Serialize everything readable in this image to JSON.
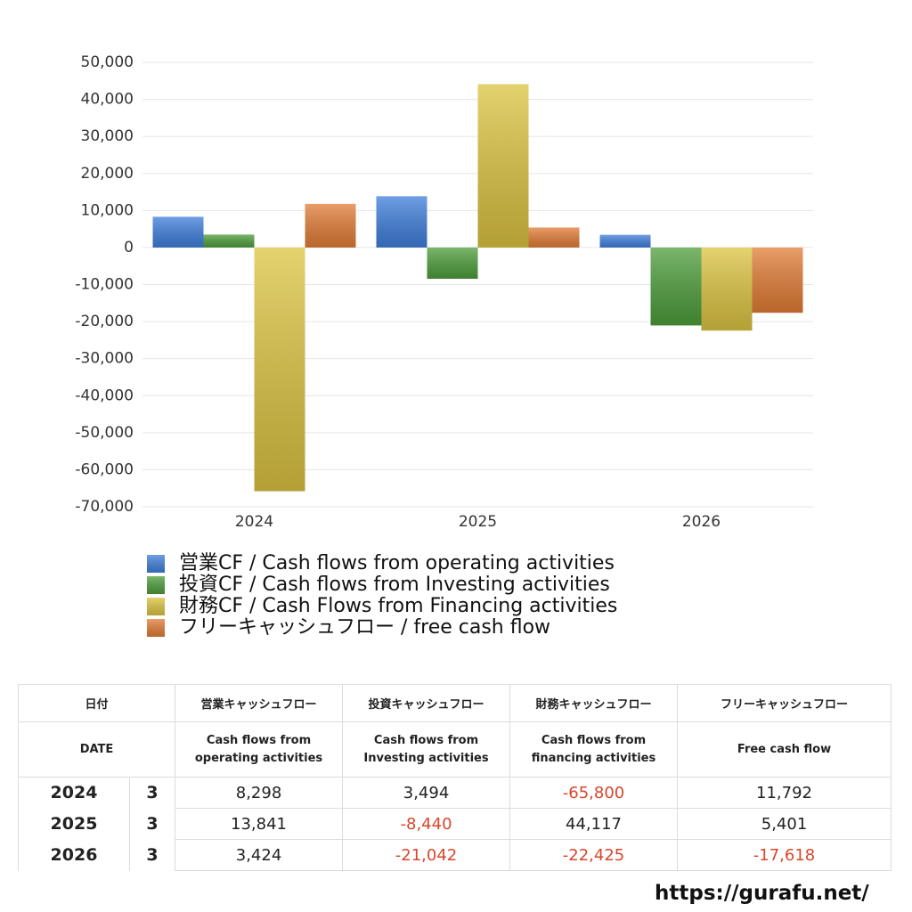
{
  "chart_data": {
    "type": "bar",
    "categories": [
      "2024",
      "2025",
      "2026"
    ],
    "series": [
      {
        "name": "営業CF / Cash flows from operating activities",
        "color": "#3f7fdc",
        "values": [
          8298,
          13841,
          3424
        ]
      },
      {
        "name": "投資CF / Cash flows from Investing activities",
        "color": "#4e9e3c",
        "values": [
          3494,
          -8440,
          -21042
        ]
      },
      {
        "name": "財務CF / Cash Flows from Financing activities",
        "color": "#dcc441",
        "values": [
          -65800,
          44117,
          -22425
        ]
      },
      {
        "name": "フリーキャッシュフロー / free cash flow",
        "color": "#e27d36",
        "values": [
          11792,
          5401,
          -17618
        ]
      }
    ],
    "ylim": [
      -70000,
      50000
    ],
    "yticks": [
      {
        "value": 50000,
        "label": "50,000"
      },
      {
        "value": 40000,
        "label": "40,000"
      },
      {
        "value": 30000,
        "label": "30,000"
      },
      {
        "value": 20000,
        "label": "20,000"
      },
      {
        "value": 10000,
        "label": "10,000"
      },
      0,
      {
        "value": -10000,
        "label": "-10,000"
      },
      {
        "value": -20000,
        "label": "-20,000"
      },
      {
        "value": -30000,
        "label": "-30,000"
      },
      {
        "value": -40000,
        "label": "-40,000"
      },
      {
        "value": -50000,
        "label": "-50,000"
      },
      {
        "value": -60000,
        "label": "-60,000"
      },
      {
        "value": -70000,
        "label": "-70,000"
      }
    ],
    "grid": true
  },
  "table": {
    "header_jp": [
      "日付",
      "営業キャッシュフロー",
      "投資キャッシュフロー",
      "財務キャッシュフロー",
      "フリーキャッシュフロー"
    ],
    "header_en": [
      "DATE",
      "Cash flows from operating activities",
      "Cash flows from Investing activities",
      "Cash flows from financing activities",
      "Free cash flow"
    ],
    "rows": [
      [
        "2024",
        "3",
        "8,298",
        "3,494",
        "-65,800",
        "11,792"
      ],
      [
        "2025",
        "3",
        "13,841",
        "-8,440",
        "44,117",
        "5,401"
      ],
      [
        "2026",
        "3",
        "3,424",
        "-21,042",
        "-22,425",
        "-17,618"
      ]
    ],
    "negative_color": "#d9462a"
  },
  "footer": "https://gurafu.net/"
}
